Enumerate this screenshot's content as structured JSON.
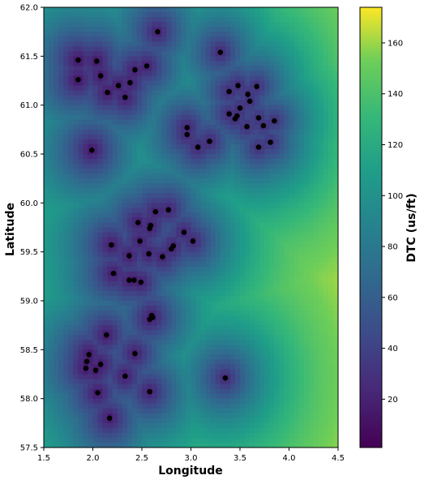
{
  "chart_data": {
    "type": "heatmap",
    "title": "",
    "xlabel": "Longitude",
    "ylabel": "Latitude",
    "xlim": [
      1.5,
      4.5
    ],
    "ylim": [
      57.5,
      62.0
    ],
    "xticks": [
      "1.5",
      "2.0",
      "2.5",
      "3.0",
      "3.5",
      "4.0",
      "4.5"
    ],
    "yticks": [
      "57.5",
      "58.0",
      "58.5",
      "59.0",
      "59.5",
      "60.0",
      "60.5",
      "61.0",
      "61.5",
      "62.0"
    ],
    "colorbar": {
      "label": "DTC (us/ft)",
      "range": [
        1,
        174
      ],
      "ticks": [
        "20",
        "40",
        "60",
        "80",
        "100",
        "120",
        "140",
        "160"
      ],
      "colormap": "viridis"
    },
    "grid": false,
    "points": [
      {
        "x": 2.66,
        "y": 61.75
      },
      {
        "x": 3.3,
        "y": 61.54
      },
      {
        "x": 1.85,
        "y": 61.46
      },
      {
        "x": 2.04,
        "y": 61.45
      },
      {
        "x": 2.55,
        "y": 61.4
      },
      {
        "x": 2.43,
        "y": 61.36
      },
      {
        "x": 2.08,
        "y": 61.3
      },
      {
        "x": 1.85,
        "y": 61.26
      },
      {
        "x": 2.38,
        "y": 61.23
      },
      {
        "x": 2.26,
        "y": 61.2
      },
      {
        "x": 2.15,
        "y": 61.13
      },
      {
        "x": 2.33,
        "y": 61.08
      },
      {
        "x": 3.48,
        "y": 61.2
      },
      {
        "x": 3.67,
        "y": 61.19
      },
      {
        "x": 3.39,
        "y": 61.14
      },
      {
        "x": 3.58,
        "y": 61.11
      },
      {
        "x": 3.6,
        "y": 61.04
      },
      {
        "x": 3.5,
        "y": 60.97
      },
      {
        "x": 3.39,
        "y": 60.91
      },
      {
        "x": 3.47,
        "y": 60.89
      },
      {
        "x": 3.45,
        "y": 60.86
      },
      {
        "x": 3.69,
        "y": 60.87
      },
      {
        "x": 3.85,
        "y": 60.84
      },
      {
        "x": 3.74,
        "y": 60.79
      },
      {
        "x": 3.57,
        "y": 60.78
      },
      {
        "x": 2.96,
        "y": 60.77
      },
      {
        "x": 2.96,
        "y": 60.7
      },
      {
        "x": 3.19,
        "y": 60.63
      },
      {
        "x": 3.81,
        "y": 60.62
      },
      {
        "x": 3.07,
        "y": 60.57
      },
      {
        "x": 3.69,
        "y": 60.57
      },
      {
        "x": 1.99,
        "y": 60.54
      },
      {
        "x": 2.77,
        "y": 59.93
      },
      {
        "x": 2.64,
        "y": 59.91
      },
      {
        "x": 2.46,
        "y": 59.8
      },
      {
        "x": 2.59,
        "y": 59.77
      },
      {
        "x": 2.58,
        "y": 59.74
      },
      {
        "x": 2.93,
        "y": 59.7
      },
      {
        "x": 2.48,
        "y": 59.61
      },
      {
        "x": 3.02,
        "y": 59.61
      },
      {
        "x": 2.19,
        "y": 59.57
      },
      {
        "x": 2.82,
        "y": 59.56
      },
      {
        "x": 2.8,
        "y": 59.53
      },
      {
        "x": 2.57,
        "y": 59.48
      },
      {
        "x": 2.37,
        "y": 59.46
      },
      {
        "x": 2.71,
        "y": 59.45
      },
      {
        "x": 2.21,
        "y": 59.28
      },
      {
        "x": 2.37,
        "y": 59.21
      },
      {
        "x": 2.42,
        "y": 59.21
      },
      {
        "x": 2.49,
        "y": 59.19
      },
      {
        "x": 2.6,
        "y": 58.85
      },
      {
        "x": 2.61,
        "y": 58.83
      },
      {
        "x": 2.58,
        "y": 58.81
      },
      {
        "x": 2.14,
        "y": 58.65
      },
      {
        "x": 1.96,
        "y": 58.45
      },
      {
        "x": 2.43,
        "y": 58.46
      },
      {
        "x": 1.94,
        "y": 58.38
      },
      {
        "x": 2.08,
        "y": 58.35
      },
      {
        "x": 1.93,
        "y": 58.31
      },
      {
        "x": 2.03,
        "y": 58.29
      },
      {
        "x": 2.33,
        "y": 58.23
      },
      {
        "x": 3.35,
        "y": 58.21
      },
      {
        "x": 2.05,
        "y": 58.06
      },
      {
        "x": 2.58,
        "y": 58.07
      },
      {
        "x": 2.17,
        "y": 57.8
      }
    ]
  }
}
